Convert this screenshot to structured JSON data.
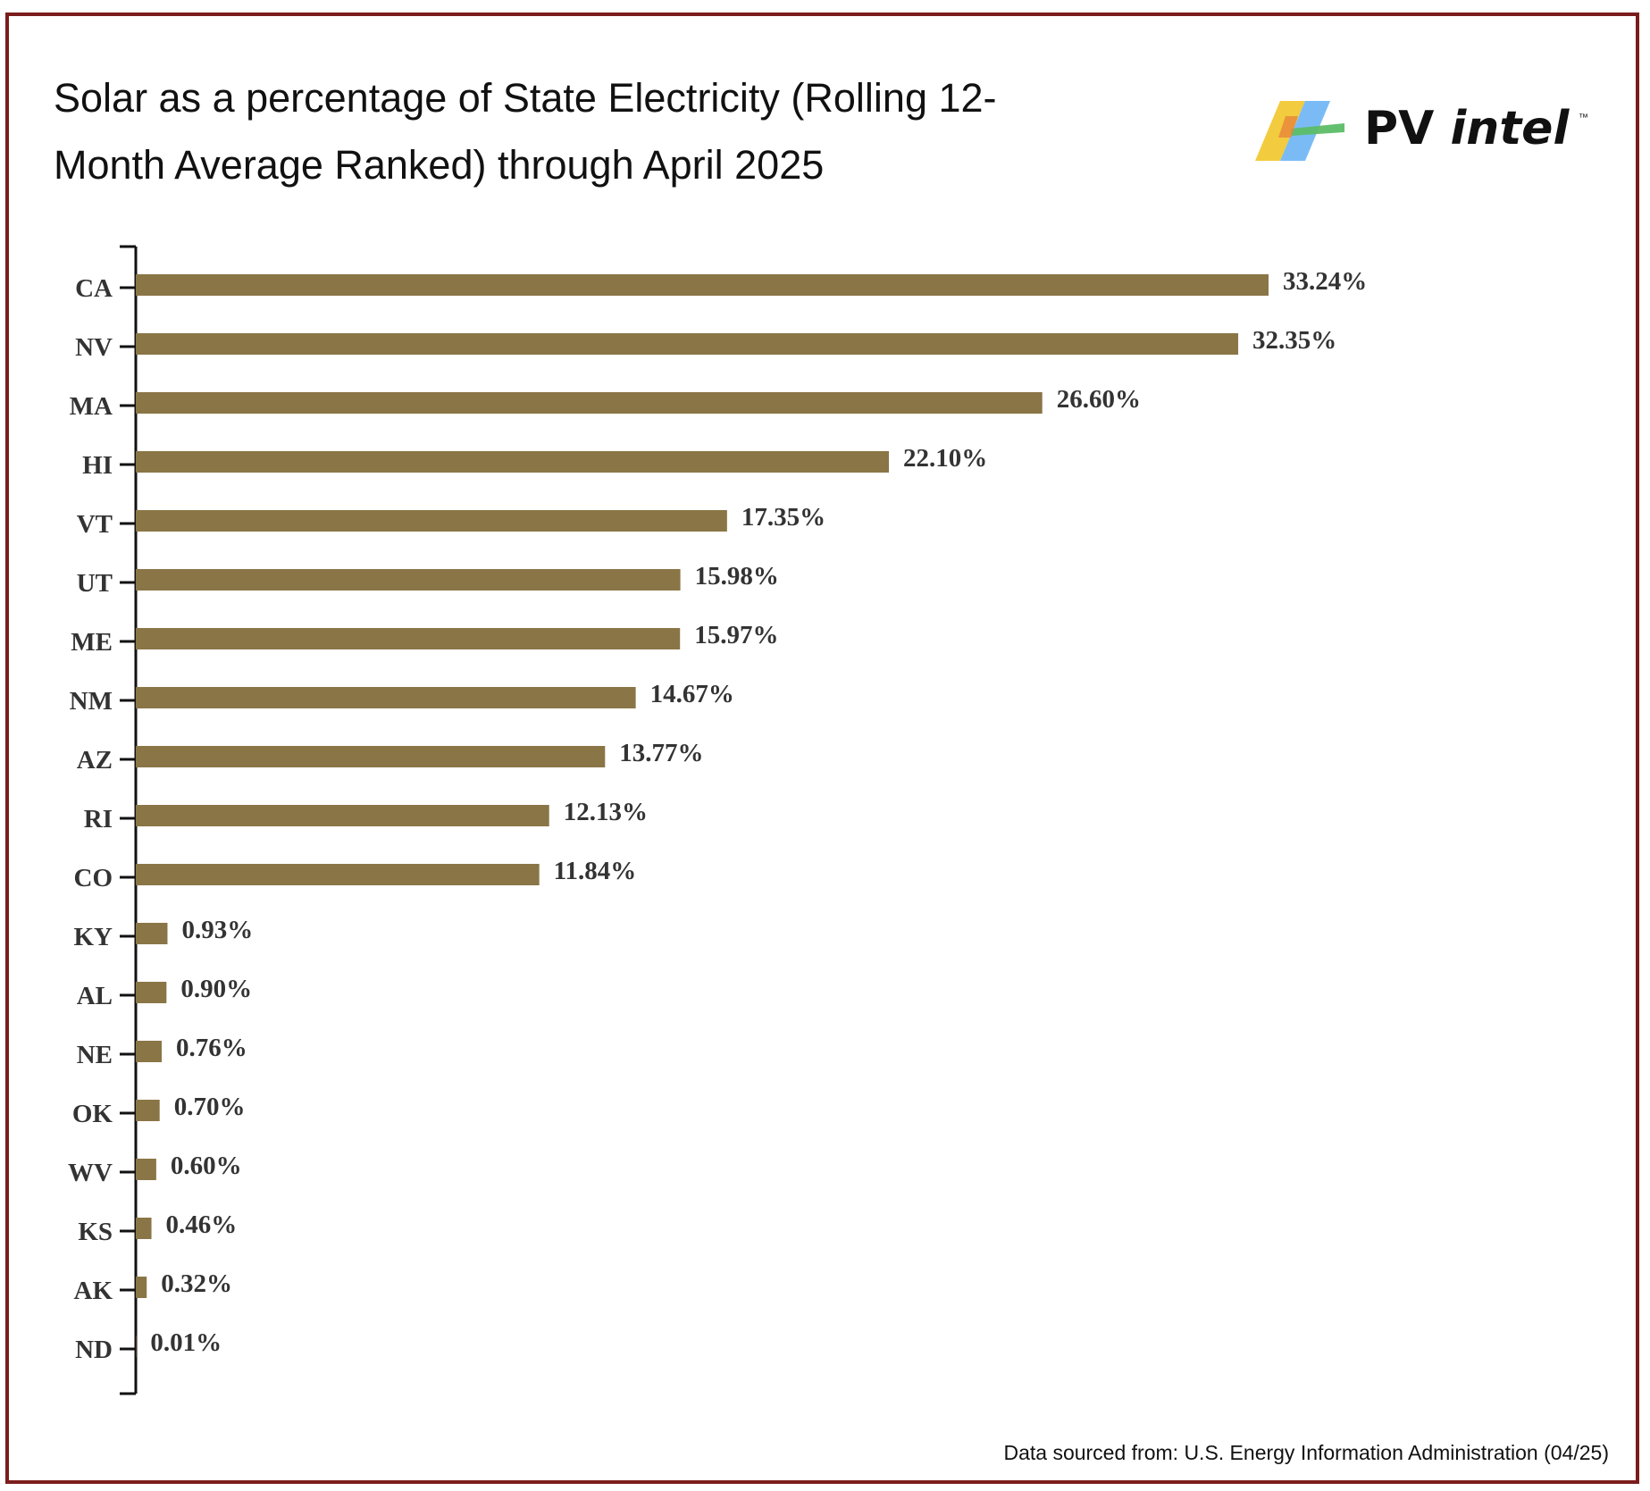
{
  "chart_data": {
    "type": "bar",
    "orientation": "horizontal",
    "title": "Solar as a percentage of State Electricity (Rolling 12-Month Average Ranked) through April 2025",
    "xlabel": "",
    "ylabel": "",
    "xlim": [
      0,
      33.24
    ],
    "grid": false,
    "bar_color": "#8a7546",
    "categories": [
      "CA",
      "NV",
      "MA",
      "HI",
      "VT",
      "UT",
      "ME",
      "NM",
      "AZ",
      "RI",
      "CO",
      "KY",
      "AL",
      "NE",
      "OK",
      "WV",
      "KS",
      "AK",
      "ND"
    ],
    "values": [
      33.24,
      32.35,
      26.6,
      22.1,
      17.35,
      15.98,
      15.97,
      14.67,
      13.77,
      12.13,
      11.84,
      0.93,
      0.9,
      0.76,
      0.7,
      0.6,
      0.46,
      0.32,
      0.01
    ],
    "data_labels": [
      "33.24%",
      "32.35%",
      "26.60%",
      "22.10%",
      "17.35%",
      "15.98%",
      "15.97%",
      "14.67%",
      "13.77%",
      "12.13%",
      "11.84%",
      "0.93%",
      "0.90%",
      "0.76%",
      "0.70%",
      "0.60%",
      "0.46%",
      "0.32%",
      "0.01%"
    ]
  },
  "logo": {
    "text_regular": "PV ",
    "text_italic": "intel",
    "tm": "™",
    "colors": [
      "#f2c834",
      "#6cb4f5",
      "#5cbd67",
      "#e7893a"
    ]
  },
  "source_note": "Data sourced from: U.S. Energy Information Administration (04/25)"
}
